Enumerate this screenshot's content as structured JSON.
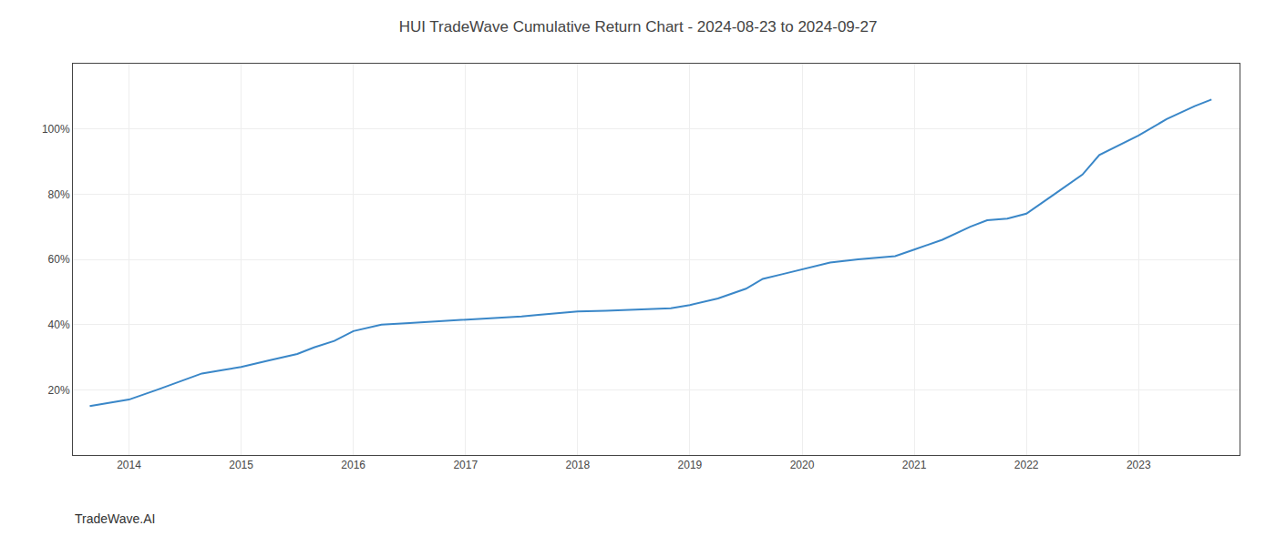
{
  "chart_data": {
    "type": "line",
    "title": "HUI TradeWave Cumulative Return Chart - 2024-08-23 to 2024-09-27",
    "annotations": [
      "TradeWave.AI"
    ],
    "x": [
      2013.65,
      2014.0,
      2014.25,
      2014.5,
      2014.65,
      2014.83,
      2015.0,
      2015.25,
      2015.5,
      2015.65,
      2015.83,
      2016.0,
      2016.25,
      2016.5,
      2016.65,
      2016.83,
      2017.0,
      2017.25,
      2017.5,
      2017.65,
      2017.83,
      2018.0,
      2018.25,
      2018.5,
      2018.65,
      2018.83,
      2019.0,
      2019.25,
      2019.5,
      2019.65,
      2019.83,
      2020.0,
      2020.25,
      2020.5,
      2020.65,
      2020.83,
      2021.0,
      2021.25,
      2021.5,
      2021.65,
      2021.83,
      2022.0,
      2022.25,
      2022.5,
      2022.65,
      2022.83,
      2023.0,
      2023.25,
      2023.5,
      2023.65
    ],
    "values": [
      15,
      17,
      20,
      23,
      25,
      26,
      27,
      29,
      31,
      33,
      35,
      38,
      40,
      40.5,
      40.8,
      41,
      41.5,
      42,
      42.5,
      43,
      43.5,
      44,
      44.2,
      44.5,
      44.8,
      45,
      46,
      48,
      51,
      54,
      55.5,
      57,
      59,
      60,
      60.5,
      61,
      63,
      66,
      70,
      72,
      72.5,
      74,
      80,
      86,
      92,
      95,
      98,
      103,
      107,
      109
    ],
    "color": "#3a87c8",
    "xlim": [
      2013.5,
      2023.9
    ],
    "xticks": [
      2014,
      2015,
      2016,
      2017,
      2018,
      2019,
      2020,
      2021,
      2022,
      2023
    ],
    "ylim": [
      0,
      120
    ],
    "yticks": [
      {
        "value": 20,
        "label": "20%"
      },
      {
        "value": 40,
        "label": "40%"
      },
      {
        "value": 60,
        "label": "60%"
      },
      {
        "value": 80,
        "label": "80%"
      },
      {
        "value": 100,
        "label": "100%"
      }
    ],
    "grid": true
  }
}
